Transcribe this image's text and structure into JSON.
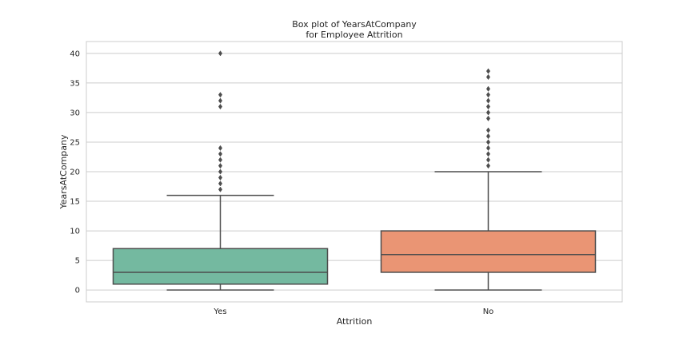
{
  "chart_data": {
    "type": "box",
    "title": [
      "Box plot of YearsAtCompany",
      "for Employee Attrition"
    ],
    "xlabel": "Attrition",
    "ylabel": "YearsAtCompany",
    "ylim": [
      -2,
      42
    ],
    "yticks": [
      0,
      5,
      10,
      15,
      20,
      25,
      30,
      35,
      40
    ],
    "grid": "horizontal",
    "categories": [
      "Yes",
      "No"
    ],
    "boxes": [
      {
        "category": "Yes",
        "color": "#74b9a0",
        "whisker_low": 0,
        "q1": 1,
        "median": 3,
        "q3": 7,
        "whisker_high": 16,
        "outliers": [
          17,
          18,
          19,
          20,
          21,
          22,
          23,
          24,
          31,
          32,
          33,
          40
        ]
      },
      {
        "category": "No",
        "color": "#ea9574",
        "whisker_low": 0,
        "q1": 3,
        "median": 6,
        "q3": 10,
        "whisker_high": 20,
        "outliers": [
          21,
          22,
          23,
          24,
          25,
          26,
          27,
          29,
          30,
          31,
          32,
          33,
          34,
          36,
          37
        ]
      }
    ]
  }
}
